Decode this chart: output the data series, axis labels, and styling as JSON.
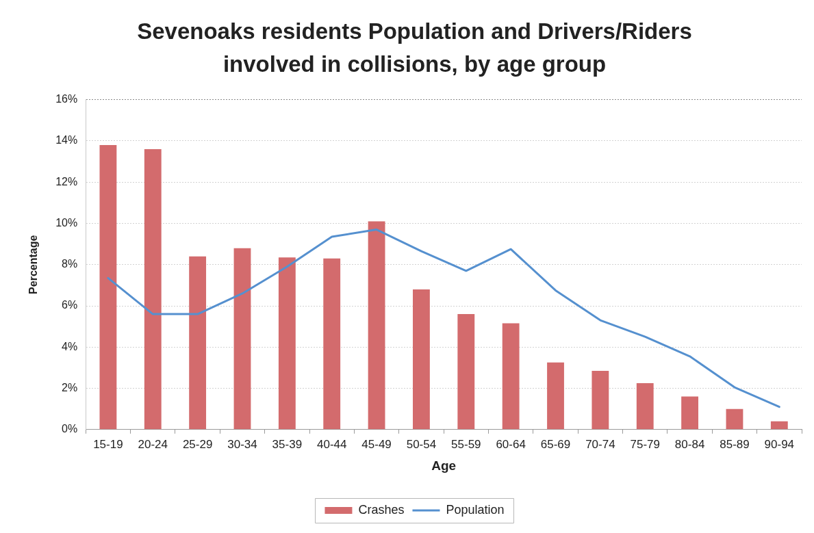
{
  "chart_data": {
    "type": "bar",
    "title": "Sevenoaks residents Population and Drivers/Riders\ninvolved in collisions, by age group",
    "xlabel": "Age",
    "ylabel": "Percentage",
    "categories": [
      "15-19",
      "20-24",
      "25-29",
      "30-34",
      "35-39",
      "40-44",
      "45-49",
      "50-54",
      "55-59",
      "60-64",
      "65-69",
      "70-74",
      "75-79",
      "80-84",
      "85-89",
      "90-94"
    ],
    "series": [
      {
        "name": "Crashes",
        "color": "#d36b6d",
        "values": [
          13.8,
          13.6,
          8.4,
          8.8,
          8.35,
          8.3,
          10.1,
          6.8,
          5.6,
          5.15,
          3.25,
          2.85,
          2.25,
          1.6,
          1.0,
          0.4
        ]
      },
      {
        "name": "Population",
        "type": "line",
        "color": "#5590cf",
        "values": [
          7.35,
          5.6,
          5.6,
          6.6,
          7.9,
          9.35,
          9.7,
          8.65,
          7.7,
          8.75,
          6.75,
          5.3,
          4.5,
          3.55,
          2.05,
          1.1
        ]
      }
    ],
    "ylim": [
      0,
      16
    ],
    "yticks": [
      {
        "value": 0,
        "label": "0%"
      },
      {
        "value": 2,
        "label": "2%"
      },
      {
        "value": 4,
        "label": "4%"
      },
      {
        "value": 6,
        "label": "6%"
      },
      {
        "value": 8,
        "label": "8%"
      },
      {
        "value": 10,
        "label": "10%"
      },
      {
        "value": 12,
        "label": "12%"
      },
      {
        "value": 14,
        "label": "14%"
      },
      {
        "value": 16,
        "label": "16%"
      }
    ],
    "grid": "y",
    "legend": "bottom",
    "marker": "none"
  }
}
